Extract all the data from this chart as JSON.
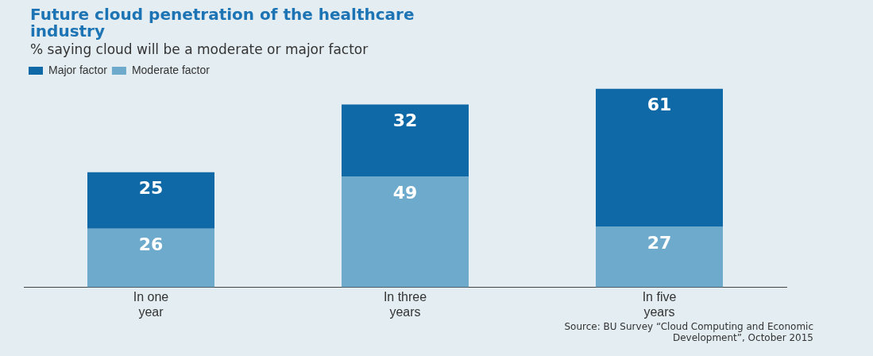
{
  "chart_data": {
    "type": "bar",
    "title": "Future cloud penetration of the healthcare industry",
    "subtitle": "% saying cloud will be a moderate or major factor",
    "categories": [
      "In one year",
      "In three years",
      "In five years"
    ],
    "stacked": true,
    "series": [
      {
        "name": "Moderate factor",
        "color": "#6eaacb",
        "values": [
          26,
          49,
          27
        ]
      },
      {
        "name": "Major factor",
        "color": "#0f69a6",
        "values": [
          25,
          32,
          61
        ]
      }
    ],
    "data_labels": true,
    "legend": "top left",
    "grid": false,
    "annotations": [
      "Source: BU Survey “Cloud Computing and Economic Development”, October 2015"
    ]
  }
}
